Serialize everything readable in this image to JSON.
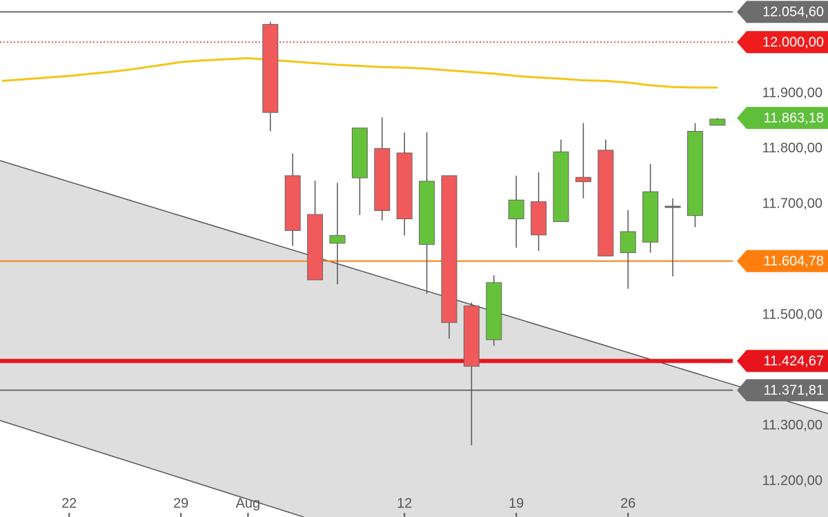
{
  "chart_data": {
    "type": "candlestick",
    "categories": [
      null,
      null,
      null,
      "22",
      null,
      null,
      null,
      null,
      "29",
      null,
      null,
      "Aug",
      null,
      null,
      null,
      null,
      null,
      null,
      "12",
      null,
      null,
      null,
      null,
      "19",
      null,
      null,
      null,
      null,
      "26",
      null,
      null,
      null,
      null
    ],
    "series": [
      {
        "up_color": "#66c23a",
        "down_color": "#f05a5a",
        "doji_color": "#666666",
        "open": [
          null,
          null,
          null,
          null,
          null,
          null,
          null,
          null,
          null,
          null,
          null,
          null,
          12032,
          11759,
          11689,
          11637,
          11755,
          11808,
          11800,
          11635,
          11759,
          11524,
          11463,
          11681,
          11712,
          11676,
          11756,
          11805,
          11620,
          11639,
          11703,
          11687,
          11850
        ],
        "high": [
          null,
          null,
          null,
          null,
          null,
          null,
          null,
          null,
          null,
          null,
          null,
          null,
          12037,
          11799,
          11750,
          11746,
          11845,
          11864,
          11837,
          11837,
          11759,
          11530,
          11579,
          11759,
          11765,
          11824,
          11854,
          11824,
          11697,
          11780,
          11718,
          11854,
          11863
        ],
        "low": [
          null,
          null,
          null,
          null,
          null,
          null,
          null,
          null,
          null,
          null,
          null,
          null,
          11839,
          11632,
          11571,
          11563,
          11688,
          11678,
          11651,
          11546,
          11465,
          11272,
          11452,
          11629,
          11623,
          11676,
          11718,
          11614,
          11555,
          11620,
          11577,
          11666,
          11850
        ],
        "close": [
          null,
          null,
          null,
          null,
          null,
          null,
          null,
          null,
          null,
          null,
          null,
          null,
          11873,
          11660,
          11571,
          11651,
          11845,
          11696,
          11681,
          11749,
          11494,
          11415,
          11566,
          11715,
          11652,
          11802,
          11748,
          11614,
          11658,
          11730,
          11704,
          11839,
          11861
        ]
      }
    ],
    "moving_average": {
      "color": "#f5c518",
      "values": [
        11930,
        11933,
        11936,
        11939,
        11943,
        11947,
        11952,
        11958,
        11964,
        11967,
        11969,
        11971,
        11968,
        11965,
        11962,
        11959,
        11957,
        11955,
        11954,
        11952,
        11949,
        11946,
        11943,
        11939,
        11936,
        11934,
        11931,
        11930,
        11927,
        11922,
        11919,
        11918,
        11918
      ]
    },
    "levels": [
      {
        "value": 12054.6,
        "label": "12.054,60",
        "color": "#6d6d6d",
        "line": "solid",
        "width": 2
      },
      {
        "value": 12000,
        "label": "12.000,00",
        "color": "#ee1c1c",
        "line": "dotted",
        "width": 1.5
      },
      {
        "value": 11863.18,
        "label": "11.863,18",
        "color": "#5fbf3a",
        "line": "none",
        "width": 0
      },
      {
        "value": 11604.78,
        "label": "11.604,78",
        "color": "#ff7f0e",
        "line": "solid",
        "width": 2
      },
      {
        "value": 11424.67,
        "label": "11.424,67",
        "color": "#e8141c",
        "line": "solid",
        "width": 6
      },
      {
        "value": 11371.81,
        "label": "11.371,81",
        "color": "#6d6d6d",
        "line": "solid",
        "width": 2
      }
    ],
    "ylim": [
      11143,
      12076
    ],
    "yticks": [
      {
        "value": 11200,
        "label": "11.200,00"
      },
      {
        "value": 11300,
        "label": "11.300,00"
      },
      {
        "value": 11500,
        "label": "11.500,00"
      },
      {
        "value": 11700,
        "label": "11.700,00"
      },
      {
        "value": 11800,
        "label": "11.800,00"
      },
      {
        "value": 11900,
        "label": "11.900,00"
      }
    ]
  }
}
